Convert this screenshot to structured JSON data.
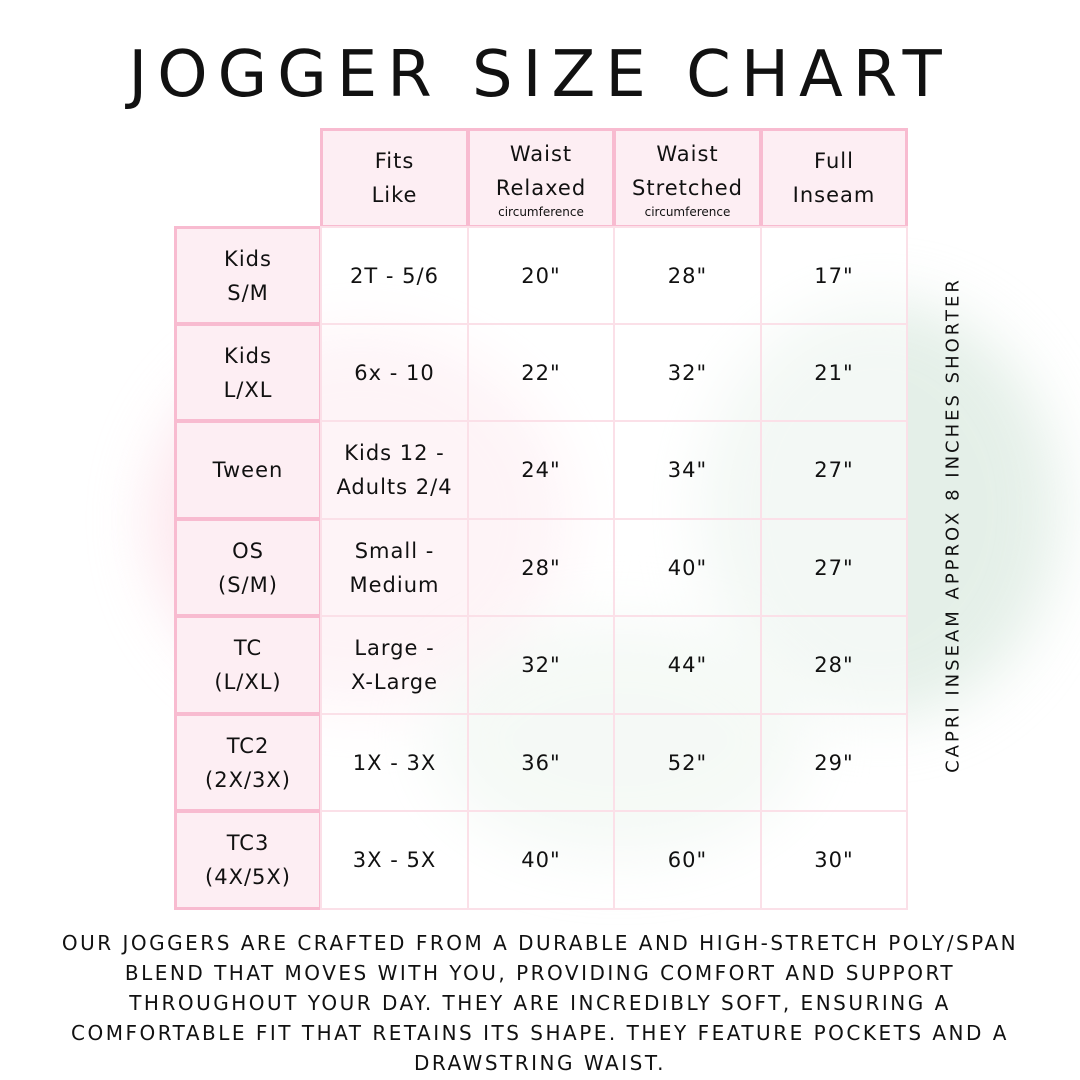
{
  "title": "JOGGER SIZE CHART",
  "columns": [
    {
      "lines": [
        "Fits",
        "Like"
      ],
      "sub": ""
    },
    {
      "lines": [
        "Waist",
        "Relaxed"
      ],
      "sub": "circumference"
    },
    {
      "lines": [
        "Waist",
        "Stretched"
      ],
      "sub": "circumference"
    },
    {
      "lines": [
        "Full",
        "Inseam"
      ],
      "sub": ""
    }
  ],
  "rows": [
    {
      "size": [
        "Kids",
        "S/M"
      ],
      "fits": [
        "2T - 5/6"
      ],
      "relaxed": "20\"",
      "stretched": "28\"",
      "inseam": "17\""
    },
    {
      "size": [
        "Kids",
        "L/XL"
      ],
      "fits": [
        "6x - 10"
      ],
      "relaxed": "22\"",
      "stretched": "32\"",
      "inseam": "21\""
    },
    {
      "size": [
        "Tween"
      ],
      "fits": [
        "Kids 12 -",
        "Adults 2/4"
      ],
      "relaxed": "24\"",
      "stretched": "34\"",
      "inseam": "27\""
    },
    {
      "size": [
        "OS",
        "(S/M)"
      ],
      "fits": [
        "Small -",
        "Medium"
      ],
      "relaxed": "28\"",
      "stretched": "40\"",
      "inseam": "27\""
    },
    {
      "size": [
        "TC",
        "(L/XL)"
      ],
      "fits": [
        "Large -",
        "X-Large"
      ],
      "relaxed": "32\"",
      "stretched": "44\"",
      "inseam": "28\""
    },
    {
      "size": [
        "TC2",
        "(2X/3X)"
      ],
      "fits": [
        "1X - 3X"
      ],
      "relaxed": "36\"",
      "stretched": "52\"",
      "inseam": "29\""
    },
    {
      "size": [
        "TC3",
        "(4X/5X)"
      ],
      "fits": [
        "3X - 5X"
      ],
      "relaxed": "40\"",
      "stretched": "60\"",
      "inseam": "30\""
    }
  ],
  "side_note": "CAPRI INSEAM APPROX 8 INCHES SHORTER",
  "description": "Our joggers are crafted from a durable and high-stretch poly/span blend that moves with you, providing comfort and support throughout your day. They are incredibly soft, ensuring a comfortable fit that retains its shape. They feature pockets and a drawstring waist.",
  "colors": {
    "header_fill": "#fdeef3",
    "border": "#f8bbd0",
    "cell_border": "#fbe0e8"
  }
}
